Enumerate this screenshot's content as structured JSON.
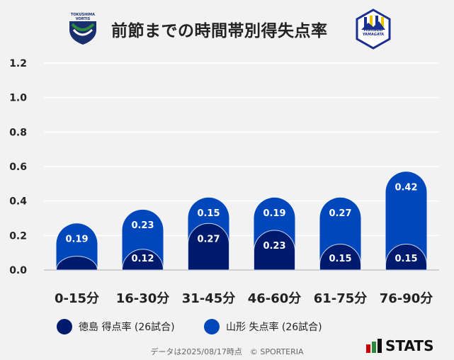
{
  "header": {
    "title": "前節までの時間帯別得失点率",
    "home_logo_text": "TOKUSHIMA VORTIS",
    "away_logo_text": "Montedio YAMAGATA"
  },
  "colors": {
    "home": "#001a6e",
    "away": "#0047bb",
    "background": "#f2f2f2",
    "grid": "#ffffff"
  },
  "chart_data": {
    "type": "bar",
    "stacked": true,
    "title": "前節までの時間帯別得失点率",
    "categories": [
      "0-15分",
      "16-30分",
      "31-45分",
      "46-60分",
      "61-75分",
      "76-90分"
    ],
    "series": [
      {
        "name": "徳島 得点率 (26試合)",
        "values": [
          0.08,
          0.12,
          0.27,
          0.23,
          0.15,
          0.15
        ],
        "labels": [
          "",
          "0.12",
          "0.27",
          "0.23",
          "0.15",
          "0.15"
        ],
        "color": "#001a6e"
      },
      {
        "name": "山形 失点率 (26試合)",
        "values": [
          0.19,
          0.23,
          0.15,
          0.19,
          0.27,
          0.42
        ],
        "labels": [
          "0.19",
          "0.23",
          "0.15",
          "0.19",
          "0.27",
          "0.42"
        ],
        "color": "#0047bb"
      }
    ],
    "yticks": [
      "0.0",
      "0.2",
      "0.4",
      "0.6",
      "0.8",
      "1.0",
      "1.2"
    ],
    "ylim": [
      0,
      1.2
    ],
    "grid": true,
    "legend": "bottom"
  },
  "footer": {
    "note": "データは2025/08/17時点　© SPORTERIA",
    "brand": "STATS"
  }
}
